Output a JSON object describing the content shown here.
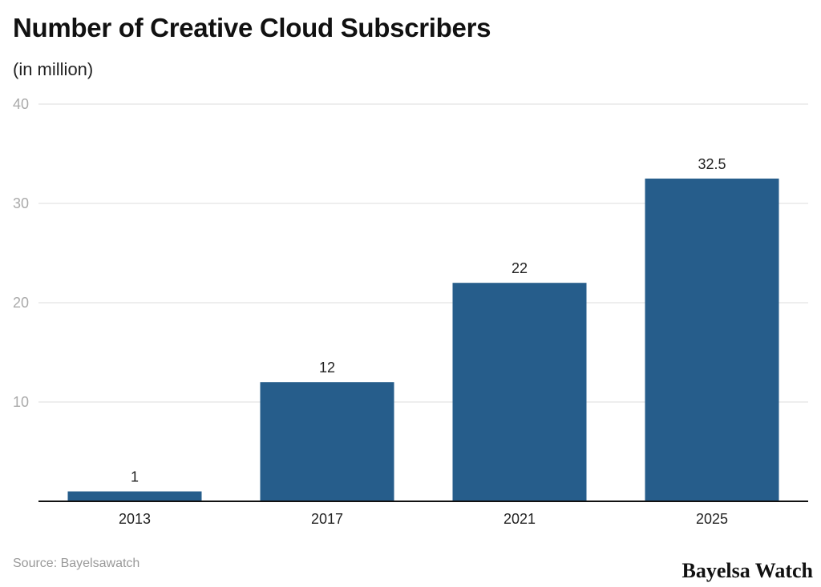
{
  "chart_data": {
    "type": "bar",
    "title": "Number of Creative Cloud Subscribers",
    "subtitle": "(in million)",
    "categories": [
      "2013",
      "2017",
      "2021",
      "2025"
    ],
    "values": [
      1,
      12,
      22,
      32.5
    ],
    "data_labels": [
      "1",
      "12",
      "22",
      "32.5"
    ],
    "xlabel": "",
    "ylabel": "",
    "ylim": [
      0,
      40
    ],
    "yticks": [
      10,
      20,
      30,
      40
    ],
    "grid": true,
    "bar_color": "#265d8b"
  },
  "source": "Source: Bayelsawatch",
  "brand": "Bayelsa Watch"
}
